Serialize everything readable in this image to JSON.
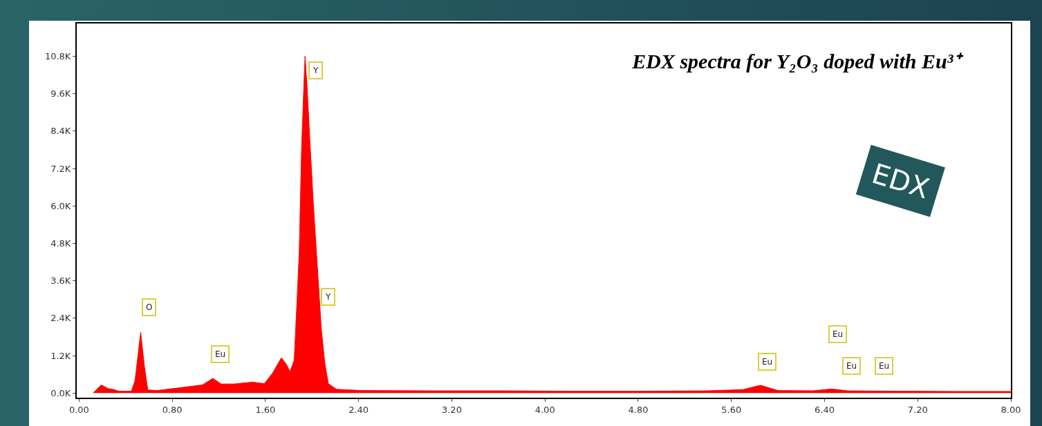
{
  "chart_data": {
    "type": "area",
    "title": "EDX spectra for Y₂O₃ doped with Eu³⁺",
    "x": [
      0.12,
      0.19,
      0.25,
      0.29,
      0.34,
      0.45,
      0.48,
      0.529,
      0.56,
      0.59,
      0.67,
      0.89,
      1.06,
      1.148,
      1.22,
      1.33,
      1.49,
      1.59,
      1.66,
      1.737,
      1.78,
      1.81,
      1.847,
      1.87,
      1.89,
      1.91,
      1.93,
      1.94,
      1.957,
      1.98,
      2.01,
      2.045,
      2.08,
      2.11,
      2.14,
      2.21,
      2.43,
      3.0,
      3.6,
      4.2,
      4.8,
      5.4,
      5.7,
      5.85,
      6.0,
      6.3,
      6.46,
      6.6,
      7.0,
      7.5,
      8.0
    ],
    "series": [
      {
        "color": "#ff0000",
        "values": [
          0,
          260,
          140,
          120,
          60,
          60,
          390,
          1950,
          880,
          100,
          80,
          180,
          260,
          470,
          290,
          290,
          350,
          300,
          630,
          1130,
          920,
          680,
          1050,
          2860,
          4500,
          7800,
          9870,
          10800,
          9870,
          8200,
          6160,
          4100,
          2040,
          960,
          300,
          120,
          80,
          70,
          70,
          60,
          60,
          70,
          110,
          250,
          80,
          70,
          130,
          70,
          60,
          50,
          50
        ]
      }
    ],
    "xlim": [
      -0.02,
      8.0
    ],
    "xticks": [
      {
        "value": 0,
        "label": "0.00"
      },
      {
        "value": 0.8,
        "label": "0.80"
      },
      {
        "value": 1.6,
        "label": "1.60"
      },
      {
        "value": 2.4,
        "label": "2.40"
      },
      {
        "value": 3.2,
        "label": "3.20"
      },
      {
        "value": 4.0,
        "label": "4.00"
      },
      {
        "value": 4.8,
        "label": "4.80"
      },
      {
        "value": 5.6,
        "label": "5.60"
      },
      {
        "value": 6.4,
        "label": "6.40"
      },
      {
        "value": 7.2,
        "label": "7.20"
      },
      {
        "value": 8.0,
        "label": "8.00"
      }
    ],
    "ylim": [
      -150,
      11850
    ],
    "yticks": [
      {
        "value": 0,
        "label": "0.0K"
      },
      {
        "value": 1200,
        "label": "1.2K"
      },
      {
        "value": 2400,
        "label": "2.4K"
      },
      {
        "value": 3600,
        "label": "3.6K"
      },
      {
        "value": 4800,
        "label": "4.8K"
      },
      {
        "value": 6000,
        "label": "6.0K"
      },
      {
        "value": 7200,
        "label": "7.2K"
      },
      {
        "value": 8400,
        "label": "8.4K"
      },
      {
        "value": 9600,
        "label": "9.6K"
      },
      {
        "value": 10800,
        "label": "10.8K"
      }
    ],
    "grid": false,
    "annotations": [
      {
        "text": "O",
        "x": 0.6,
        "y": 2740
      },
      {
        "text": "Eu",
        "x": 1.21,
        "y": 1240
      },
      {
        "text": "Y",
        "x": 2.03,
        "y": 10350
      },
      {
        "text": "Y",
        "x": 2.14,
        "y": 3090
      },
      {
        "text": "Eu",
        "x": 5.91,
        "y": 1010
      },
      {
        "text": "Eu",
        "x": 6.51,
        "y": 1890
      },
      {
        "text": "Eu",
        "x": 6.63,
        "y": 860
      },
      {
        "text": "Eu",
        "x": 6.91,
        "y": 860
      },
      "EDX"
    ]
  }
}
